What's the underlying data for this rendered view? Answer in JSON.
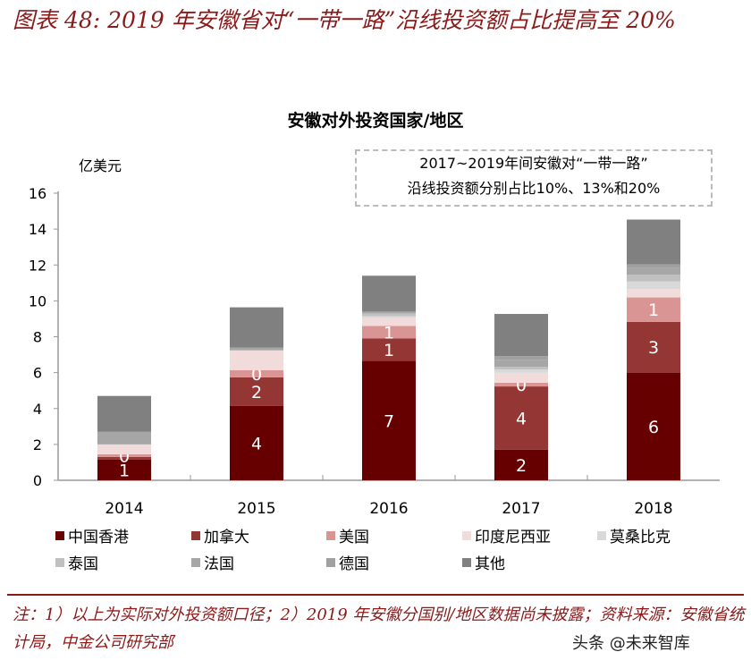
{
  "header": {
    "title": "图表 48: 2019 年安徽省对“一带一路”沿线投资额占比提高至 20%"
  },
  "chart_data": {
    "type": "bar",
    "stacked": true,
    "title": "安徽对外投资国家/地区",
    "ylabel": "亿美元",
    "ylim": [
      0,
      16
    ],
    "yticks": [
      0,
      2,
      4,
      6,
      8,
      10,
      12,
      14,
      16
    ],
    "categories": [
      "2014",
      "2015",
      "2016",
      "2017",
      "2018"
    ],
    "grid": false,
    "legend_position": "bottom",
    "annotation": [
      "2017~2019年间安徽对“一带一路”",
      "沿线投资额分别占比10%、13%和20%"
    ],
    "series": [
      {
        "name": "中国香港",
        "color": "#660000",
        "values": [
          1.15,
          4.14,
          6.65,
          1.71,
          6.0
        ],
        "labels": [
          "1",
          "4",
          "7",
          "2",
          "6"
        ]
      },
      {
        "name": "加拿大",
        "color": "#943634",
        "values": [
          0.15,
          1.6,
          1.25,
          3.52,
          2.83
        ],
        "labels": [
          "",
          "2",
          "1",
          "4",
          "3"
        ]
      },
      {
        "name": "美国",
        "color": "#d99594",
        "values": [
          0.15,
          0.4,
          0.7,
          0.21,
          1.36
        ],
        "labels": [
          "0",
          "0",
          "1",
          "0",
          "1"
        ]
      },
      {
        "name": "印度尼西亚",
        "color": "#f2dcdb",
        "values": [
          0.55,
          1.1,
          0.45,
          0.55,
          0.47
        ],
        "labels": [
          "",
          "",
          "",
          "",
          ""
        ]
      },
      {
        "name": "莫桑比克",
        "color": "#d9d9d9",
        "values": [
          0,
          0,
          0.1,
          0.18,
          0.42
        ],
        "labels": [
          "",
          "",
          "",
          "",
          ""
        ]
      },
      {
        "name": "泰国",
        "color": "#c0c0c0",
        "values": [
          0,
          0,
          0.15,
          0.15,
          0.38
        ],
        "labels": [
          "",
          "",
          "",
          "",
          ""
        ]
      },
      {
        "name": "法国",
        "color": "#a6a6a6",
        "values": [
          0.7,
          0.15,
          0.1,
          0.4,
          0.37
        ],
        "labels": [
          "",
          "",
          "",
          "",
          ""
        ]
      },
      {
        "name": "德国",
        "color": "#a0a0a0",
        "values": [
          0,
          0,
          0,
          0.2,
          0.2
        ],
        "labels": [
          "",
          "",
          "",
          "",
          ""
        ]
      },
      {
        "name": "其他",
        "color": "#808080",
        "values": [
          2.0,
          2.25,
          2.0,
          2.35,
          2.5
        ],
        "labels": [
          "",
          "",
          "",
          "",
          ""
        ]
      }
    ]
  },
  "footer": {
    "note": "注：1）以上为实际对外投资额口径；2）2019 年安徽分国别/地区数据尚未披露；资料来源：安徽省统计局，中金公司研究部",
    "watermark": "头条 @未来智库"
  }
}
